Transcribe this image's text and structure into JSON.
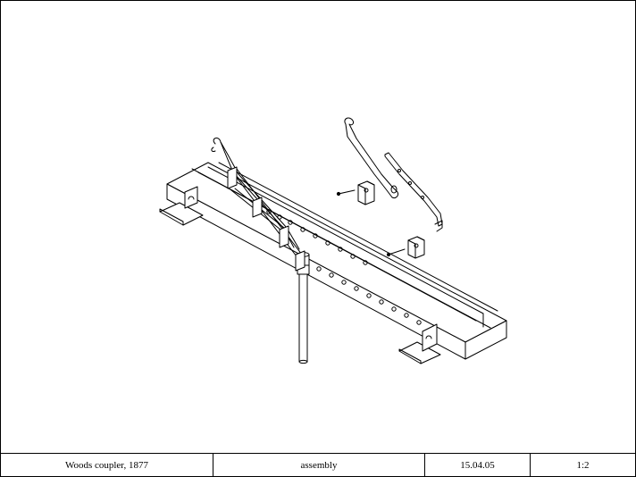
{
  "title_block": {
    "name": "Woods coupler, 1877",
    "drawing_type": "assembly",
    "date": "15.04.05",
    "scale": "1:2"
  },
  "drawing": {
    "line_color": "#000000",
    "background_color": "#ffffff",
    "parts": [
      "base-beam-icon",
      "rail-groove-icon",
      "mounting-bracket-icon",
      "vertical-post-icon",
      "linkage-arm-icon",
      "hook-lever-icon",
      "clevis-block-icon",
      "pin-icon"
    ]
  }
}
